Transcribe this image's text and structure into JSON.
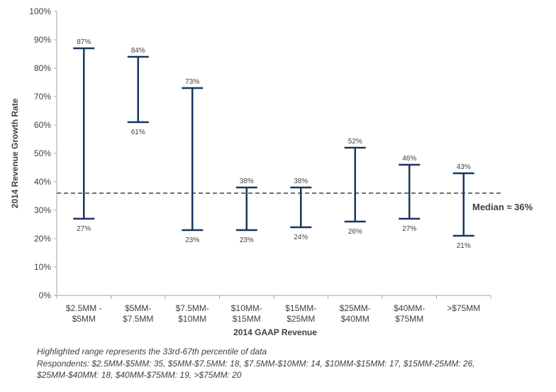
{
  "chart_data": {
    "type": "range",
    "ylabel": "2014 Revenue Growth Rate",
    "xlabel": "2014 GAAP Revenue",
    "ylim": [
      0,
      100
    ],
    "y_ticks": [
      0,
      10,
      20,
      30,
      40,
      50,
      60,
      70,
      80,
      90,
      100
    ],
    "y_tick_labels": [
      "0%",
      "10%",
      "20%",
      "30%",
      "40%",
      "50%",
      "60%",
      "70%",
      "80%",
      "90%",
      "100%"
    ],
    "categories": [
      [
        "$2.5MM -",
        "$5MM"
      ],
      [
        "$5MM-",
        "$7.5MM"
      ],
      [
        "$7.5MM-",
        "$10MM"
      ],
      [
        "$10MM-",
        "$15MM"
      ],
      [
        "$15MM-",
        "$25MM"
      ],
      [
        "$25MM-",
        "$40MM"
      ],
      [
        "$40MM-",
        "$75MM"
      ],
      [
        ">$75MM"
      ]
    ],
    "high": [
      87,
      84,
      73,
      38,
      38,
      52,
      46,
      43
    ],
    "low": [
      27,
      61,
      23,
      23,
      24,
      26,
      27,
      21
    ],
    "high_labels": [
      "87%",
      "84%",
      "73%",
      "38%",
      "38%",
      "52%",
      "46%",
      "43%"
    ],
    "low_labels": [
      "27%",
      "61%",
      "23%",
      "23%",
      "24%",
      "26%",
      "27%",
      "21%"
    ],
    "median": 36,
    "median_label": "Median ≈ 36%",
    "grid": false,
    "colors": {
      "range": "#17375e",
      "median": "#404040",
      "axis": "#a6a6a6"
    }
  },
  "footnotes": [
    "Highlighted range represents the 33rd-67th percentile of data",
    "Respondents: $2.5MM-$5MM: 35, $5MM-$7.5MM: 18, $7.5MM-$10MM: 14, $10MM-$15MM: 17, $15MM-25MM: 26,",
    "$25MM-$40MM: 18, $40MM-$75MM: 19, >$75MM: 20"
  ]
}
